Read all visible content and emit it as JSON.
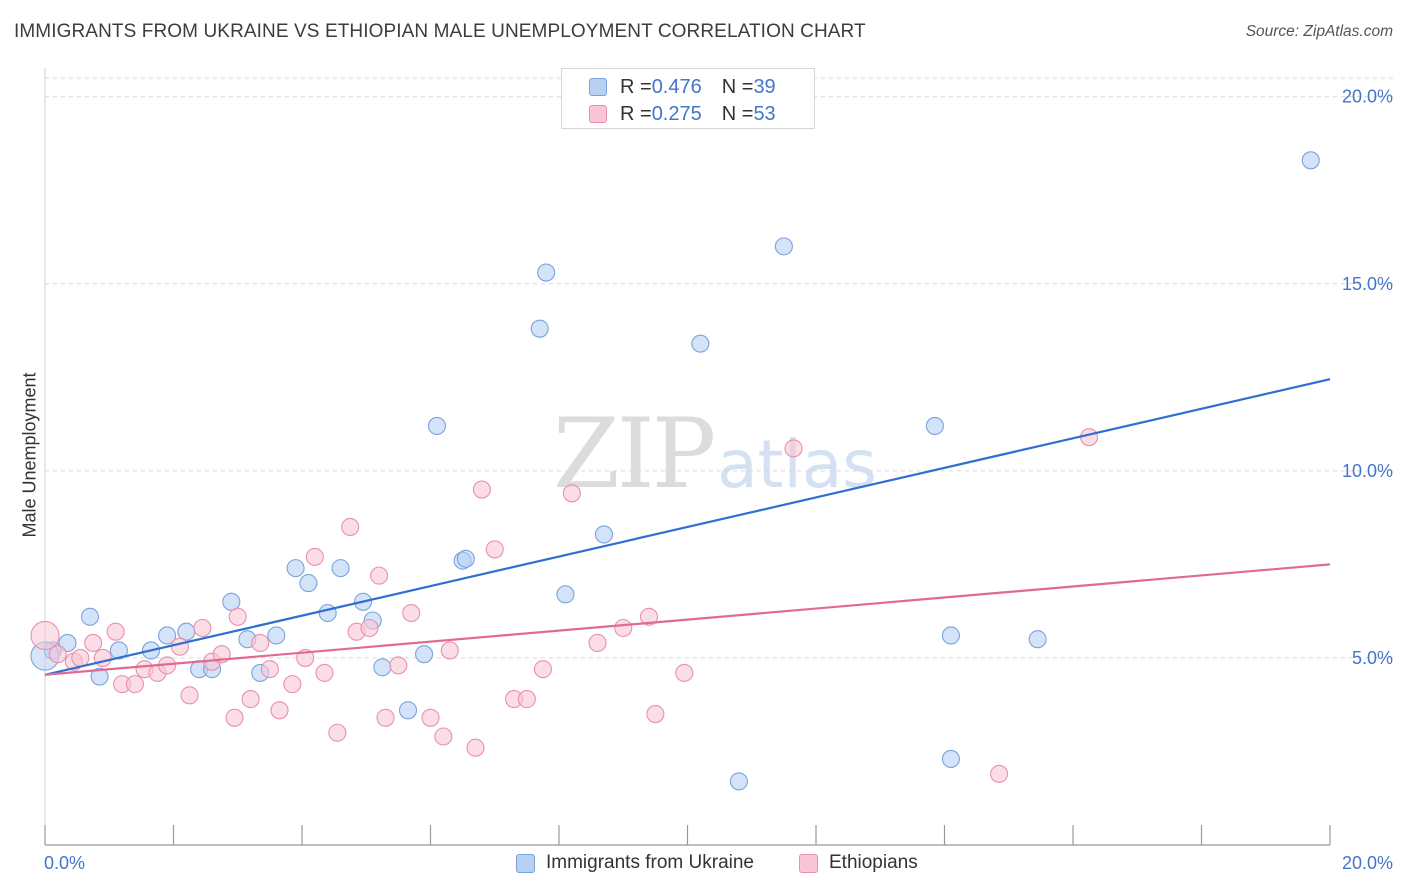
{
  "title": "IMMIGRANTS FROM UKRAINE VS ETHIOPIAN MALE UNEMPLOYMENT CORRELATION CHART",
  "source": "Source: ZipAtlas.com",
  "watermark": {
    "zip": "ZIP",
    "atlas": "atlas"
  },
  "legend_top": [
    {
      "r_label": "R = ",
      "r_value": "0.476",
      "n_label": "N = ",
      "n_value": "39"
    },
    {
      "r_label": "R = ",
      "r_value": "0.275",
      "n_label": "N = ",
      "n_value": "53"
    }
  ],
  "colors": {
    "blue_fill": "#b8d0f2",
    "blue_stroke": "#7aa3dd",
    "blue_line": "#2f6fd0",
    "pink_fill": "#f8c6d6",
    "pink_stroke": "#eb8fac",
    "pink_line": "#e06a93",
    "tick_label": "#4475c9",
    "grid": "#d9d9d9",
    "axis": "#999999"
  },
  "chart_data": {
    "type": "scatter",
    "title": "IMMIGRANTS FROM UKRAINE VS ETHIOPIAN MALE UNEMPLOYMENT CORRELATION CHART",
    "xlabel": "",
    "ylabel": "Male Unemployment",
    "xlim": [
      0,
      20
    ],
    "ylim": [
      0,
      20.5
    ],
    "x_tick_labels": [
      "0.0%",
      "20.0%"
    ],
    "y_ticks": [
      5,
      10,
      15,
      20
    ],
    "y_tick_labels": [
      "5.0%",
      "10.0%",
      "15.0%",
      "20.0%"
    ],
    "grid": true,
    "legend_position": "bottom",
    "series": [
      {
        "name": "Immigrants from Ukraine",
        "color": "blue",
        "r": 0.476,
        "n": 39,
        "trend": {
          "x": [
            0,
            20
          ],
          "y": [
            4.55,
            12.45
          ]
        },
        "points": [
          [
            0.12,
            5.2
          ],
          [
            0.35,
            5.4
          ],
          [
            0.7,
            6.1
          ],
          [
            0.85,
            4.5
          ],
          [
            1.15,
            5.2
          ],
          [
            1.65,
            5.2
          ],
          [
            1.9,
            5.6
          ],
          [
            2.2,
            5.7
          ],
          [
            2.4,
            4.7
          ],
          [
            2.6,
            4.7
          ],
          [
            2.9,
            6.5
          ],
          [
            3.15,
            5.5
          ],
          [
            3.35,
            4.6
          ],
          [
            3.6,
            5.6
          ],
          [
            3.9,
            7.4
          ],
          [
            4.1,
            7.0
          ],
          [
            4.4,
            6.2
          ],
          [
            4.6,
            7.4
          ],
          [
            4.95,
            6.5
          ],
          [
            5.1,
            6.0
          ],
          [
            5.25,
            4.75
          ],
          [
            5.65,
            3.6
          ],
          [
            5.9,
            5.1
          ],
          [
            6.1,
            11.2
          ],
          [
            6.5,
            7.6
          ],
          [
            6.55,
            7.65
          ],
          [
            7.7,
            13.8
          ],
          [
            7.8,
            15.3
          ],
          [
            8.1,
            6.7
          ],
          [
            8.7,
            8.3
          ],
          [
            10.2,
            13.4
          ],
          [
            10.8,
            1.7
          ],
          [
            11.5,
            16.0
          ],
          [
            13.85,
            11.2
          ],
          [
            14.1,
            2.3
          ],
          [
            14.1,
            5.6
          ],
          [
            15.45,
            5.5
          ],
          [
            19.7,
            18.3
          ],
          [
            0.0,
            5.05
          ]
        ]
      },
      {
        "name": "Ethiopians",
        "color": "pink",
        "r": 0.275,
        "n": 53,
        "trend": {
          "x": [
            0,
            20
          ],
          "y": [
            4.55,
            7.5
          ]
        },
        "points": [
          [
            0.0,
            5.6
          ],
          [
            0.2,
            5.1
          ],
          [
            0.45,
            4.9
          ],
          [
            0.55,
            5.0
          ],
          [
            0.75,
            5.4
          ],
          [
            0.9,
            5.0
          ],
          [
            1.1,
            5.7
          ],
          [
            1.2,
            4.3
          ],
          [
            1.4,
            4.3
          ],
          [
            1.55,
            4.7
          ],
          [
            1.75,
            4.6
          ],
          [
            1.9,
            4.8
          ],
          [
            2.1,
            5.3
          ],
          [
            2.25,
            4.0
          ],
          [
            2.45,
            5.8
          ],
          [
            2.6,
            4.9
          ],
          [
            2.75,
            5.1
          ],
          [
            2.95,
            3.4
          ],
          [
            3.0,
            6.1
          ],
          [
            3.2,
            3.9
          ],
          [
            3.35,
            5.4
          ],
          [
            3.5,
            4.7
          ],
          [
            3.65,
            3.6
          ],
          [
            3.85,
            4.3
          ],
          [
            4.05,
            5.0
          ],
          [
            4.2,
            7.7
          ],
          [
            4.35,
            4.6
          ],
          [
            4.55,
            3.0
          ],
          [
            4.75,
            8.5
          ],
          [
            4.85,
            5.7
          ],
          [
            5.05,
            5.8
          ],
          [
            5.2,
            7.2
          ],
          [
            5.3,
            3.4
          ],
          [
            5.5,
            4.8
          ],
          [
            5.7,
            6.2
          ],
          [
            6.0,
            3.4
          ],
          [
            6.2,
            2.9
          ],
          [
            6.3,
            5.2
          ],
          [
            6.7,
            2.6
          ],
          [
            6.8,
            9.5
          ],
          [
            7.0,
            7.9
          ],
          [
            7.3,
            3.9
          ],
          [
            7.5,
            3.9
          ],
          [
            7.75,
            4.7
          ],
          [
            8.2,
            9.4
          ],
          [
            8.6,
            5.4
          ],
          [
            9.0,
            5.8
          ],
          [
            9.4,
            6.1
          ],
          [
            9.5,
            3.5
          ],
          [
            9.95,
            4.6
          ],
          [
            11.65,
            10.6
          ],
          [
            14.85,
            1.9
          ],
          [
            16.25,
            10.9
          ]
        ]
      }
    ]
  }
}
